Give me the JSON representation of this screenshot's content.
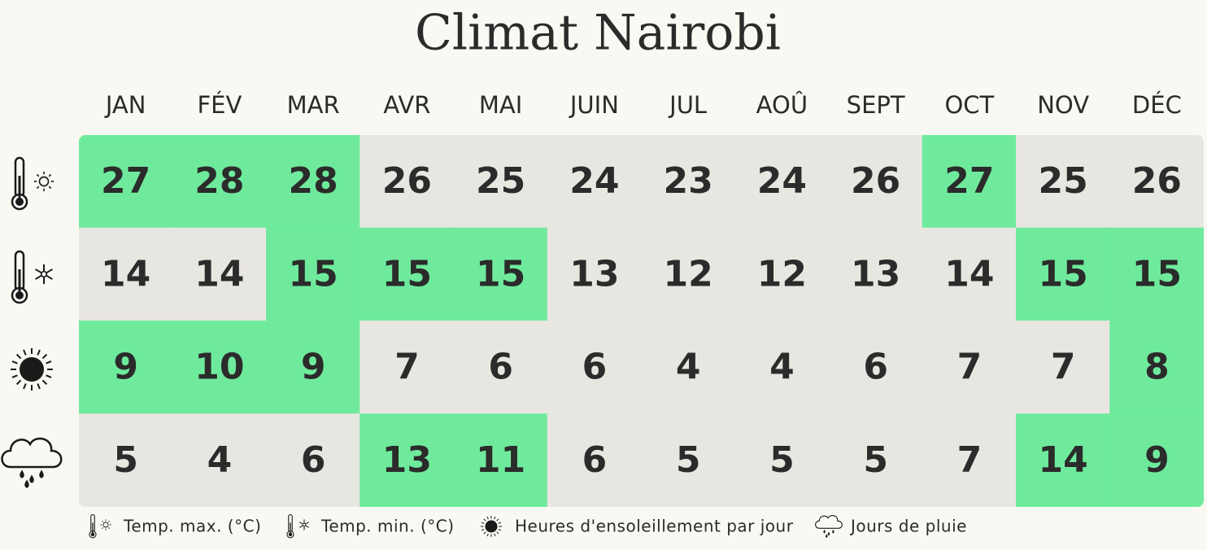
{
  "title": "Climat Nairobi",
  "months": [
    "JAN",
    "FÉV",
    "MAR",
    "AVR",
    "MAI",
    "JUIN",
    "JUL",
    "AOÛ",
    "SEPT",
    "OCT",
    "NOV",
    "DÉC"
  ],
  "highlight_color": "#6fea9c",
  "base_color": "#e8e6e0",
  "rows": [
    {
      "label": "Temp. max. (°C)",
      "values": [
        27,
        28,
        28,
        26,
        25,
        24,
        23,
        24,
        26,
        27,
        25,
        26
      ],
      "highlight": [
        true,
        true,
        true,
        false,
        false,
        false,
        false,
        false,
        false,
        true,
        false,
        false
      ]
    },
    {
      "label": "Temp. min. (°C)",
      "values": [
        14,
        14,
        15,
        15,
        15,
        13,
        12,
        12,
        13,
        14,
        15,
        15
      ],
      "highlight": [
        false,
        false,
        true,
        true,
        true,
        false,
        false,
        false,
        false,
        false,
        true,
        true
      ]
    },
    {
      "label": "Heures d'ensoleillement par jour",
      "values": [
        9,
        10,
        9,
        7,
        6,
        6,
        4,
        4,
        6,
        7,
        7,
        8
      ],
      "highlight": [
        true,
        true,
        true,
        false,
        false,
        false,
        false,
        false,
        false,
        false,
        false,
        true
      ]
    },
    {
      "label": "Jours de pluie",
      "values": [
        5,
        4,
        6,
        13,
        11,
        6,
        5,
        5,
        5,
        7,
        14,
        9
      ],
      "highlight": [
        false,
        false,
        false,
        true,
        true,
        false,
        false,
        false,
        false,
        false,
        true,
        true
      ]
    }
  ]
}
